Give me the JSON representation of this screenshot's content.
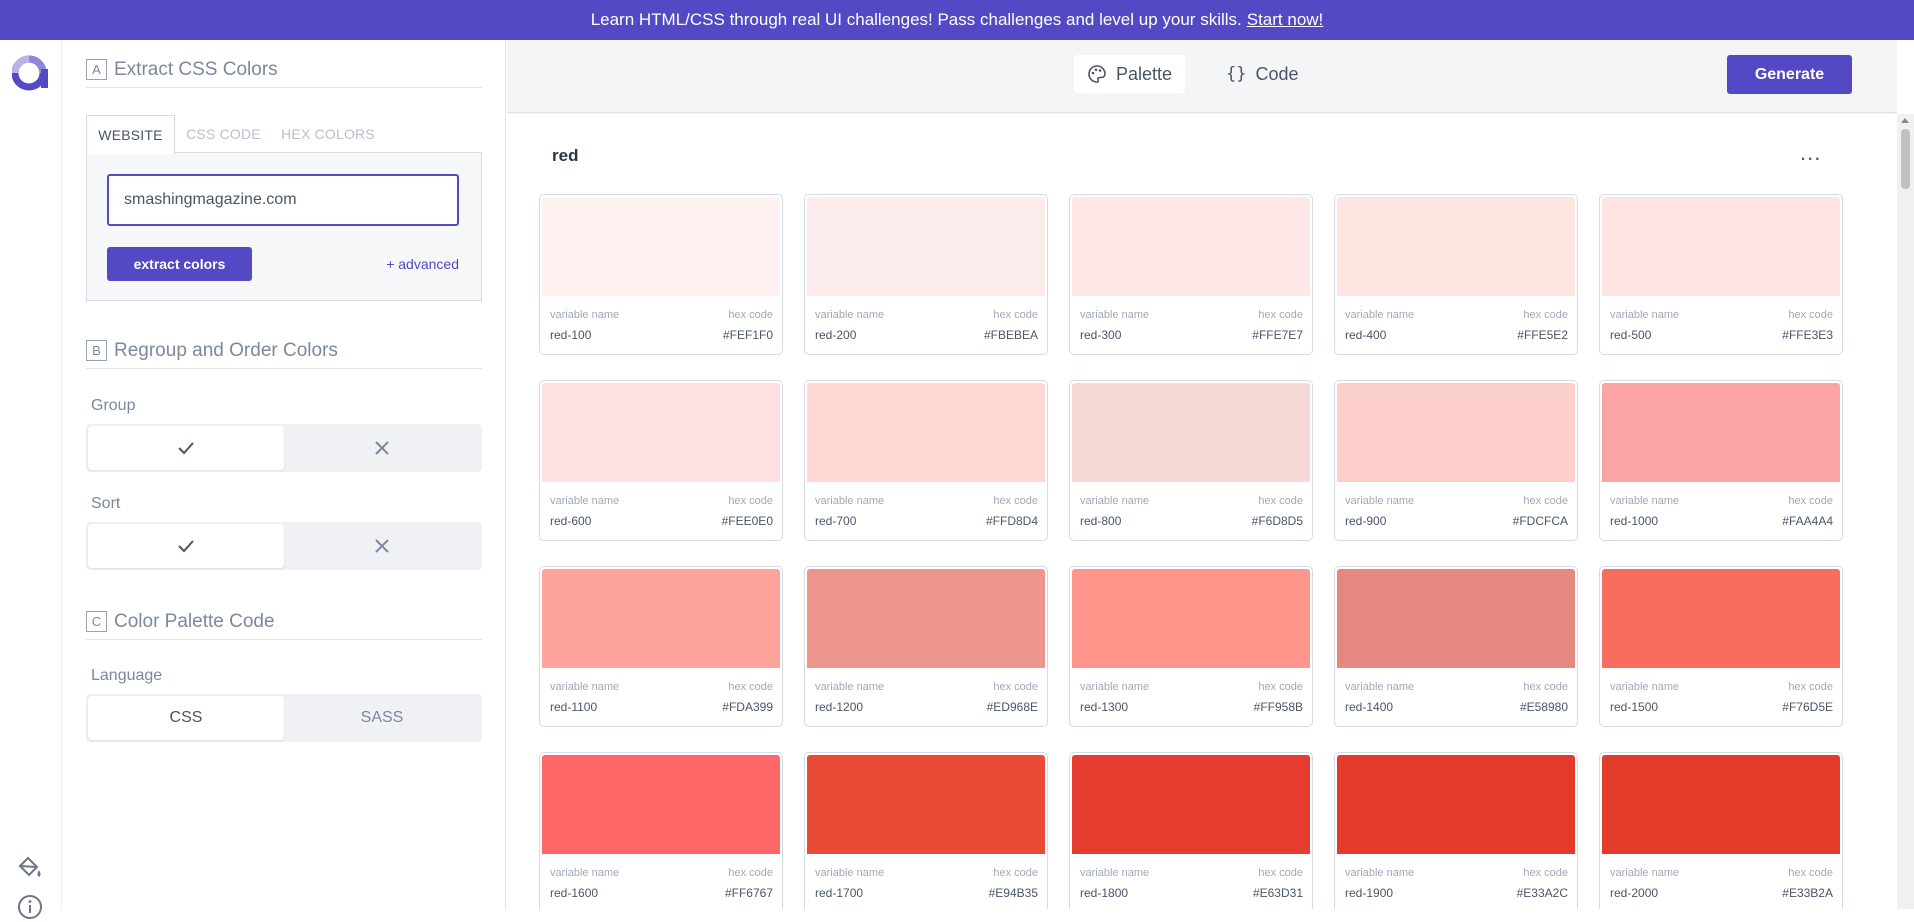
{
  "banner": {
    "text": "Learn HTML/CSS through real UI challenges! Pass challenges and level up your skills.",
    "link": "Start now!"
  },
  "rail": {
    "logo": "app-logo",
    "icons": [
      "paint-bucket-icon",
      "info-icon"
    ]
  },
  "sidebar": {
    "section_a": {
      "letter": "A",
      "title": "Extract CSS Colors"
    },
    "tabs": [
      {
        "label": "WEBSITE",
        "active": true
      },
      {
        "label": "CSS CODE",
        "active": false
      },
      {
        "label": "HEX COLORS",
        "active": false
      }
    ],
    "url_value": "smashingmagazine.com",
    "extract_label": "extract colors",
    "advanced_label": "+ advanced",
    "section_b": {
      "letter": "B",
      "title": "Regroup and Order Colors"
    },
    "group_label": "Group",
    "sort_label": "Sort",
    "section_c": {
      "letter": "C",
      "title": "Color Palette Code"
    },
    "language_label": "Language",
    "language_options": [
      "CSS",
      "SASS"
    ]
  },
  "topbar": {
    "palette_label": "Palette",
    "code_label": "Code",
    "generate_label": "Generate"
  },
  "palette": {
    "group_name": "red",
    "more_label": "...",
    "var_label": "variable name",
    "hex_label": "hex code",
    "swatches": [
      {
        "name": "red-100",
        "hex": "#FEF1F0"
      },
      {
        "name": "red-200",
        "hex": "#FBEBEA"
      },
      {
        "name": "red-300",
        "hex": "#FFE7E7"
      },
      {
        "name": "red-400",
        "hex": "#FFE5E2"
      },
      {
        "name": "red-500",
        "hex": "#FFE3E3"
      },
      {
        "name": "red-600",
        "hex": "#FEE0E0"
      },
      {
        "name": "red-700",
        "hex": "#FFD8D4"
      },
      {
        "name": "red-800",
        "hex": "#F6D8D5"
      },
      {
        "name": "red-900",
        "hex": "#FDCFCA"
      },
      {
        "name": "red-1000",
        "hex": "#FAA4A4"
      },
      {
        "name": "red-1100",
        "hex": "#FDA399"
      },
      {
        "name": "red-1200",
        "hex": "#ED968E"
      },
      {
        "name": "red-1300",
        "hex": "#FF958B"
      },
      {
        "name": "red-1400",
        "hex": "#E58980"
      },
      {
        "name": "red-1500",
        "hex": "#F76D5E"
      },
      {
        "name": "red-1600",
        "hex": "#FF6767"
      },
      {
        "name": "red-1700",
        "hex": "#E94B35"
      },
      {
        "name": "red-1800",
        "hex": "#E63D31"
      },
      {
        "name": "red-1900",
        "hex": "#E33A2C"
      },
      {
        "name": "red-2000",
        "hex": "#E33B2A"
      }
    ]
  },
  "colors": {
    "accent": "#5349c4"
  }
}
